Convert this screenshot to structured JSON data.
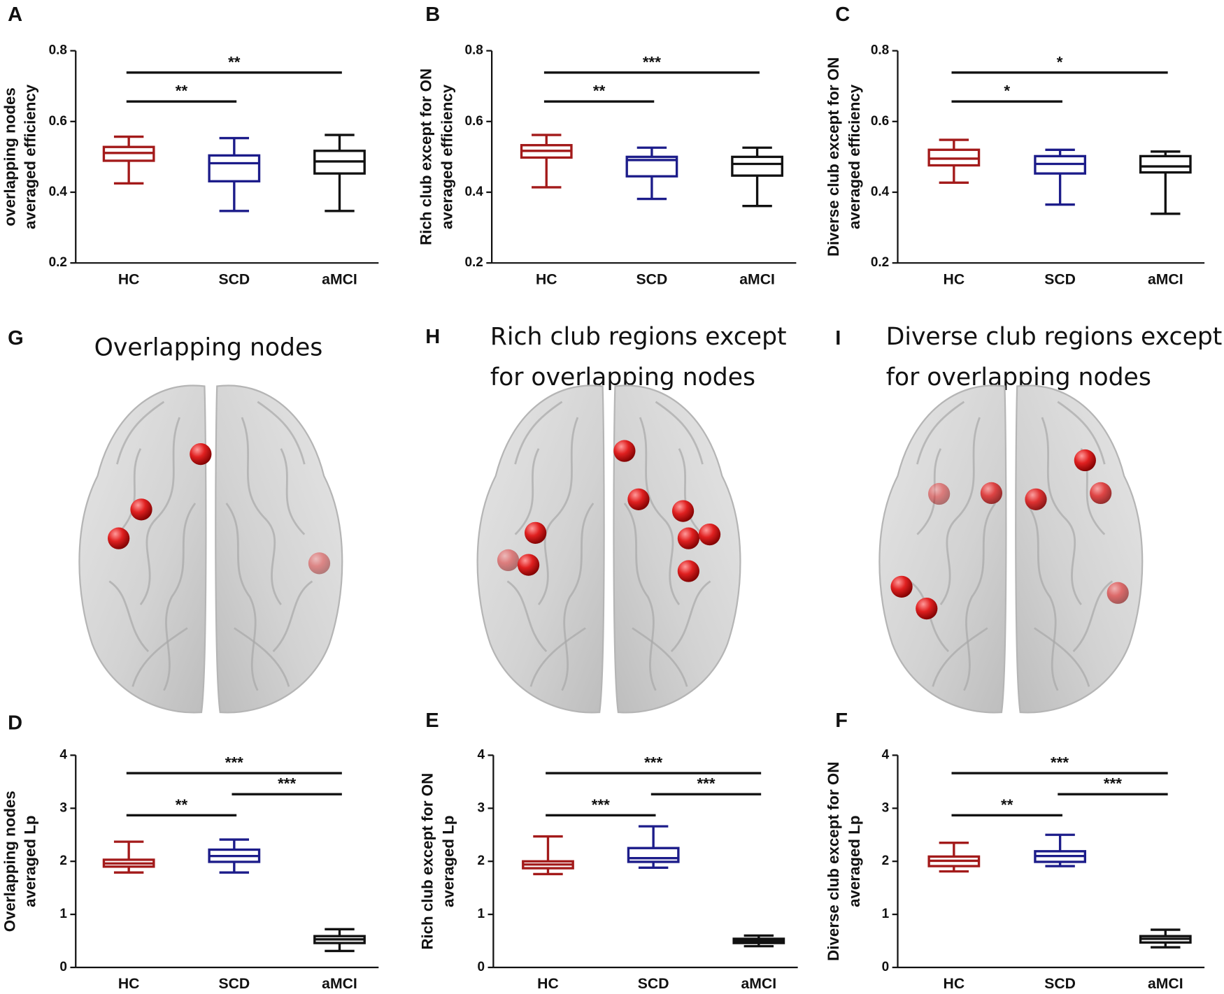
{
  "chart_data": [
    {
      "type": "box",
      "label": "A",
      "ylabel": [
        "overlapping nodes",
        "averaged efficiency"
      ],
      "categories": [
        "HC",
        "SCD",
        "aMCI"
      ],
      "colors": [
        "#a31a1a",
        "#1c1c8a",
        "#111111"
      ],
      "boxes": [
        {
          "min": 0.425,
          "q1": 0.489,
          "median": 0.511,
          "q3": 0.528,
          "max": 0.557
        },
        {
          "min": 0.347,
          "q1": 0.431,
          "median": 0.482,
          "q3": 0.504,
          "max": 0.553
        },
        {
          "min": 0.347,
          "q1": 0.453,
          "median": 0.487,
          "q3": 0.517,
          "max": 0.562
        }
      ],
      "ylim": [
        0.2,
        0.8
      ],
      "yticks": [
        0.2,
        0.4,
        0.6,
        0.8
      ],
      "comparisons": [
        {
          "from": "HC",
          "to": "SCD",
          "label": "**"
        },
        {
          "from": "HC",
          "to": "aMCI",
          "label": "**"
        }
      ]
    },
    {
      "type": "box",
      "label": "B",
      "ylabel": [
        "Rich club except for ON",
        "averaged efficiency"
      ],
      "categories": [
        "HC",
        "SCD",
        "aMCI"
      ],
      "colors": [
        "#a31a1a",
        "#1c1c8a",
        "#111111"
      ],
      "boxes": [
        {
          "min": 0.414,
          "q1": 0.498,
          "median": 0.517,
          "q3": 0.533,
          "max": 0.562
        },
        {
          "min": 0.381,
          "q1": 0.445,
          "median": 0.491,
          "q3": 0.5,
          "max": 0.526
        },
        {
          "min": 0.361,
          "q1": 0.447,
          "median": 0.48,
          "q3": 0.5,
          "max": 0.526
        }
      ],
      "ylim": [
        0.2,
        0.8
      ],
      "yticks": [
        0.2,
        0.4,
        0.6,
        0.8
      ],
      "comparisons": [
        {
          "from": "HC",
          "to": "SCD",
          "label": "**"
        },
        {
          "from": "HC",
          "to": "aMCI",
          "label": "***"
        }
      ]
    },
    {
      "type": "box",
      "label": "C",
      "ylabel": [
        "Diverse club except for ON",
        "averaged efficiency"
      ],
      "categories": [
        "HC",
        "SCD",
        "aMCI"
      ],
      "colors": [
        "#a31a1a",
        "#1c1c8a",
        "#111111"
      ],
      "boxes": [
        {
          "min": 0.427,
          "q1": 0.476,
          "median": 0.495,
          "q3": 0.52,
          "max": 0.548
        },
        {
          "min": 0.365,
          "q1": 0.453,
          "median": 0.48,
          "q3": 0.502,
          "max": 0.52
        },
        {
          "min": 0.339,
          "q1": 0.456,
          "median": 0.473,
          "q3": 0.502,
          "max": 0.515
        }
      ],
      "ylim": [
        0.2,
        0.8
      ],
      "yticks": [
        0.2,
        0.4,
        0.6,
        0.8
      ],
      "comparisons": [
        {
          "from": "HC",
          "to": "SCD",
          "label": "*"
        },
        {
          "from": "HC",
          "to": "aMCI",
          "label": "*"
        }
      ]
    },
    {
      "type": "box",
      "label": "D",
      "ylabel": [
        "Overlapping nodes",
        "averaged Lp"
      ],
      "categories": [
        "HC",
        "SCD",
        "aMCI"
      ],
      "colors": [
        "#a31a1a",
        "#1c1c8a",
        "#111111"
      ],
      "boxes": [
        {
          "min": 1.79,
          "q1": 1.9,
          "median": 1.96,
          "q3": 2.03,
          "max": 2.37
        },
        {
          "min": 1.79,
          "q1": 1.99,
          "median": 2.1,
          "q3": 2.22,
          "max": 2.41
        },
        {
          "min": 0.31,
          "q1": 0.46,
          "median": 0.53,
          "q3": 0.59,
          "max": 0.72
        }
      ],
      "ylim": [
        0,
        4
      ],
      "yticks": [
        0,
        1,
        2,
        3,
        4
      ],
      "comparisons": [
        {
          "from": "HC",
          "to": "SCD",
          "label": "**"
        },
        {
          "from": "SCD",
          "to": "aMCI",
          "label": "***"
        },
        {
          "from": "HC",
          "to": "aMCI",
          "label": "***"
        }
      ]
    },
    {
      "type": "box",
      "label": "E",
      "ylabel": [
        "Rich club except for ON",
        "averaged Lp"
      ],
      "categories": [
        "HC",
        "SCD",
        "aMCI"
      ],
      "colors": [
        "#a31a1a",
        "#1c1c8a",
        "#111111"
      ],
      "boxes": [
        {
          "min": 1.76,
          "q1": 1.87,
          "median": 1.94,
          "q3": 2.0,
          "max": 2.47
        },
        {
          "min": 1.88,
          "q1": 1.99,
          "median": 2.06,
          "q3": 2.25,
          "max": 2.66
        },
        {
          "min": 0.4,
          "q1": 0.46,
          "median": 0.5,
          "q3": 0.54,
          "max": 0.6
        }
      ],
      "ylim": [
        0,
        4
      ],
      "yticks": [
        0,
        1,
        2,
        3,
        4
      ],
      "comparisons": [
        {
          "from": "HC",
          "to": "SCD",
          "label": "***"
        },
        {
          "from": "SCD",
          "to": "aMCI",
          "label": "***"
        },
        {
          "from": "HC",
          "to": "aMCI",
          "label": "***"
        }
      ]
    },
    {
      "type": "box",
      "label": "F",
      "ylabel": [
        "Diverse club except for ON",
        "averaged Lp"
      ],
      "categories": [
        "HC",
        "SCD",
        "aMCI"
      ],
      "colors": [
        "#a31a1a",
        "#1c1c8a",
        "#111111"
      ],
      "boxes": [
        {
          "min": 1.81,
          "q1": 1.91,
          "median": 2.01,
          "q3": 2.09,
          "max": 2.35
        },
        {
          "min": 1.91,
          "q1": 1.99,
          "median": 2.1,
          "q3": 2.19,
          "max": 2.5
        },
        {
          "min": 0.38,
          "q1": 0.47,
          "median": 0.54,
          "q3": 0.59,
          "max": 0.71
        }
      ],
      "ylim": [
        0,
        4
      ],
      "yticks": [
        0,
        1,
        2,
        3,
        4
      ],
      "comparisons": [
        {
          "from": "HC",
          "to": "SCD",
          "label": "**"
        },
        {
          "from": "SCD",
          "to": "aMCI",
          "label": "***"
        },
        {
          "from": "HC",
          "to": "aMCI",
          "label": "***"
        }
      ]
    }
  ],
  "brain_panels": [
    {
      "label": "G",
      "title": [
        "Overlapping nodes"
      ]
    },
    {
      "label": "H",
      "title": [
        "Rich club regions except",
        "for overlapping nodes"
      ]
    },
    {
      "label": "I",
      "title": [
        "Diverse club regions except",
        "for overlapping nodes"
      ]
    }
  ]
}
